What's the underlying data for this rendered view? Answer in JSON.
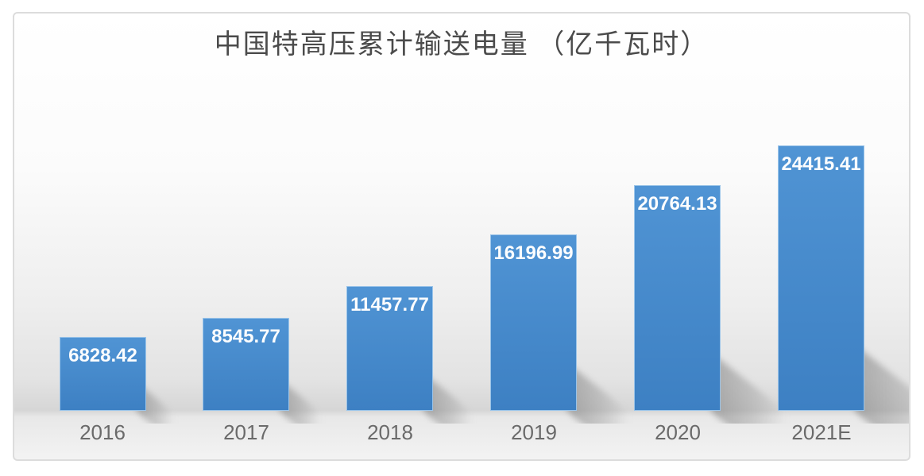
{
  "page": {
    "background_color": "#ffffff"
  },
  "chart_card": {
    "border_color": "#dcdcdc"
  },
  "chart_data": {
    "type": "bar",
    "title": "中国特高压累计输送电量 （亿千瓦时）",
    "categories": [
      "2016",
      "2017",
      "2018",
      "2019",
      "2020",
      "2021E"
    ],
    "values": [
      6828.42,
      8545.77,
      11457.77,
      16196.99,
      20764.13,
      24415.41
    ],
    "value_labels": [
      "6828.42",
      "8545.77",
      "11457.77",
      "16196.99",
      "20764.13",
      "24415.41"
    ],
    "xlabel": "",
    "ylabel": "",
    "ylim": [
      0,
      26000
    ],
    "grid": false,
    "legend": false,
    "value_labels_position": "inside-top",
    "colors": {
      "bar_gradient_top": "#5094d4",
      "bar_gradient_bottom": "#3d80c3",
      "bar_border": "#a9cfee",
      "value_label": "#fcfdfe",
      "axis_label": "#6a6a6a",
      "title": "#4b4b4b",
      "shadow": "#6c6c6c"
    }
  }
}
